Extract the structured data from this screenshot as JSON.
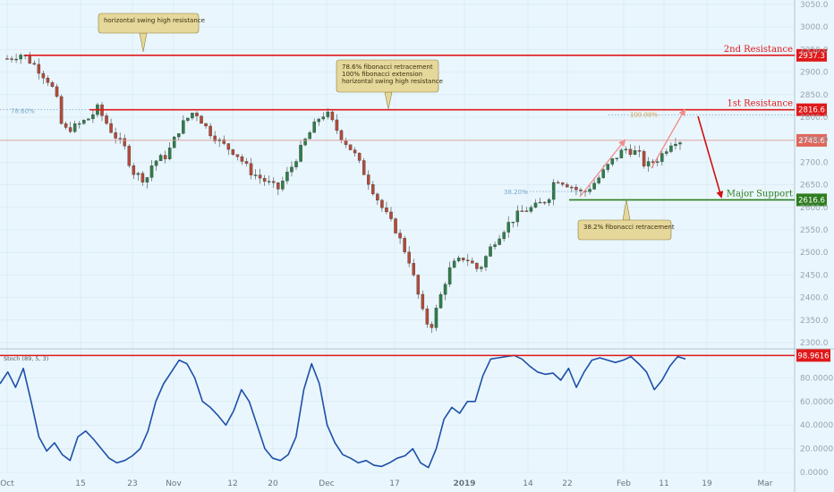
{
  "chart_data": [
    {
      "type": "candlestick",
      "x_ticks": [
        "Oct",
        "15",
        "23",
        "Nov",
        "12",
        "20",
        "Dec",
        "17",
        "2019",
        "14",
        "22",
        "Feb",
        "11",
        "19",
        "Mar"
      ],
      "y_ticks": [
        "3050.0",
        "3000.0",
        "2950.0",
        "2900.0",
        "2850.0",
        "2800.0",
        "2750.0",
        "2700.0",
        "2650.0",
        "2600.0",
        "2550.0",
        "2500.0",
        "2450.0",
        "2400.0",
        "2350.0",
        "2300.0"
      ],
      "ylim": [
        2290,
        3060
      ],
      "price_path": [
        [
          0,
          2930
        ],
        [
          2,
          2940
        ],
        [
          4,
          2915
        ],
        [
          6,
          2880
        ],
        [
          7,
          2850
        ],
        [
          8,
          2770
        ],
        [
          10,
          2780
        ],
        [
          12,
          2800
        ],
        [
          13,
          2820
        ],
        [
          15,
          2770
        ],
        [
          17,
          2730
        ],
        [
          18,
          2680
        ],
        [
          20,
          2660
        ],
        [
          21,
          2700
        ],
        [
          23,
          2715
        ],
        [
          25,
          2780
        ],
        [
          27,
          2815
        ],
        [
          29,
          2770
        ],
        [
          31,
          2740
        ],
        [
          33,
          2720
        ],
        [
          35,
          2680
        ],
        [
          37,
          2660
        ],
        [
          39,
          2640
        ],
        [
          41,
          2690
        ],
        [
          43,
          2750
        ],
        [
          45,
          2800
        ],
        [
          46,
          2810
        ],
        [
          48,
          2760
        ],
        [
          50,
          2720
        ],
        [
          52,
          2660
        ],
        [
          54,
          2600
        ],
        [
          56,
          2550
        ],
        [
          58,
          2480
        ],
        [
          59,
          2420
        ],
        [
          60,
          2360
        ],
        [
          61,
          2330
        ],
        [
          62,
          2380
        ],
        [
          63,
          2430
        ],
        [
          64,
          2470
        ],
        [
          66,
          2490
        ],
        [
          68,
          2460
        ],
        [
          70,
          2520
        ],
        [
          72,
          2560
        ],
        [
          74,
          2590
        ],
        [
          76,
          2600
        ],
        [
          78,
          2620
        ],
        [
          79,
          2665
        ],
        [
          81,
          2650
        ],
        [
          83,
          2630
        ],
        [
          85,
          2660
        ],
        [
          87,
          2700
        ],
        [
          89,
          2730
        ],
        [
          91,
          2720
        ],
        [
          92,
          2690
        ],
        [
          94,
          2710
        ],
        [
          96,
          2750
        ],
        [
          97,
          2748
        ]
      ],
      "levels": [
        {
          "name": "2nd Resistance",
          "value": 2937.3,
          "label": "2937.3",
          "color": "#e0191b"
        },
        {
          "name": "1st Resistance",
          "value": 2816.6,
          "label": "2816.6",
          "color": "#e0191b"
        },
        {
          "name": "Major Support",
          "value": 2616.6,
          "label": "2616.6",
          "color": "#2e7d1f"
        }
      ],
      "last_price": {
        "value": 2748.6,
        "label": "2748.6",
        "color": "#e0665a"
      },
      "fib_labels": {
        "left_786": "78.60%",
        "right_100": "100.00%",
        "retr_382": "38.20%"
      },
      "callouts": [
        {
          "name": "callout-left",
          "lines": [
            "horizontal swing high resistance"
          ]
        },
        {
          "name": "callout-mid",
          "lines": [
            "78.6% fibonacci retracement",
            "100% fibonacci extension",
            "horizontal swing high resistance"
          ]
        },
        {
          "name": "callout-bottom",
          "lines": [
            "38.2% fibonacci retracement"
          ]
        }
      ],
      "colors": {
        "up": "#2f7d4a",
        "down": "#b34a3a",
        "grid": "#d6e6f0"
      }
    },
    {
      "type": "line",
      "indicator": "Stoch (89, 5, 3)",
      "y_ticks": [
        "80.0000",
        "60.0000",
        "40.0000",
        "20.0000",
        "0.0000"
      ],
      "ylim": [
        0,
        100
      ],
      "last_value": {
        "value": 98.9616,
        "label": "98.9616"
      },
      "values": [
        75,
        85,
        72,
        88,
        60,
        30,
        18,
        25,
        15,
        10,
        30,
        35,
        28,
        20,
        12,
        8,
        10,
        14,
        20,
        35,
        60,
        75,
        85,
        95,
        92,
        80,
        60,
        55,
        48,
        40,
        52,
        70,
        60,
        40,
        20,
        12,
        10,
        15,
        30,
        70,
        92,
        75,
        40,
        25,
        15,
        12,
        8,
        10,
        6,
        5,
        8,
        12,
        14,
        20,
        8,
        4,
        20,
        45,
        55,
        50,
        60,
        60,
        82,
        96,
        97,
        98,
        99,
        96,
        90,
        85,
        83,
        84,
        78,
        88,
        72,
        85,
        95,
        97,
        95,
        93,
        95,
        98,
        92,
        85,
        70,
        78,
        90,
        98,
        96
      ],
      "line_color": "#1d4fa8"
    }
  ]
}
